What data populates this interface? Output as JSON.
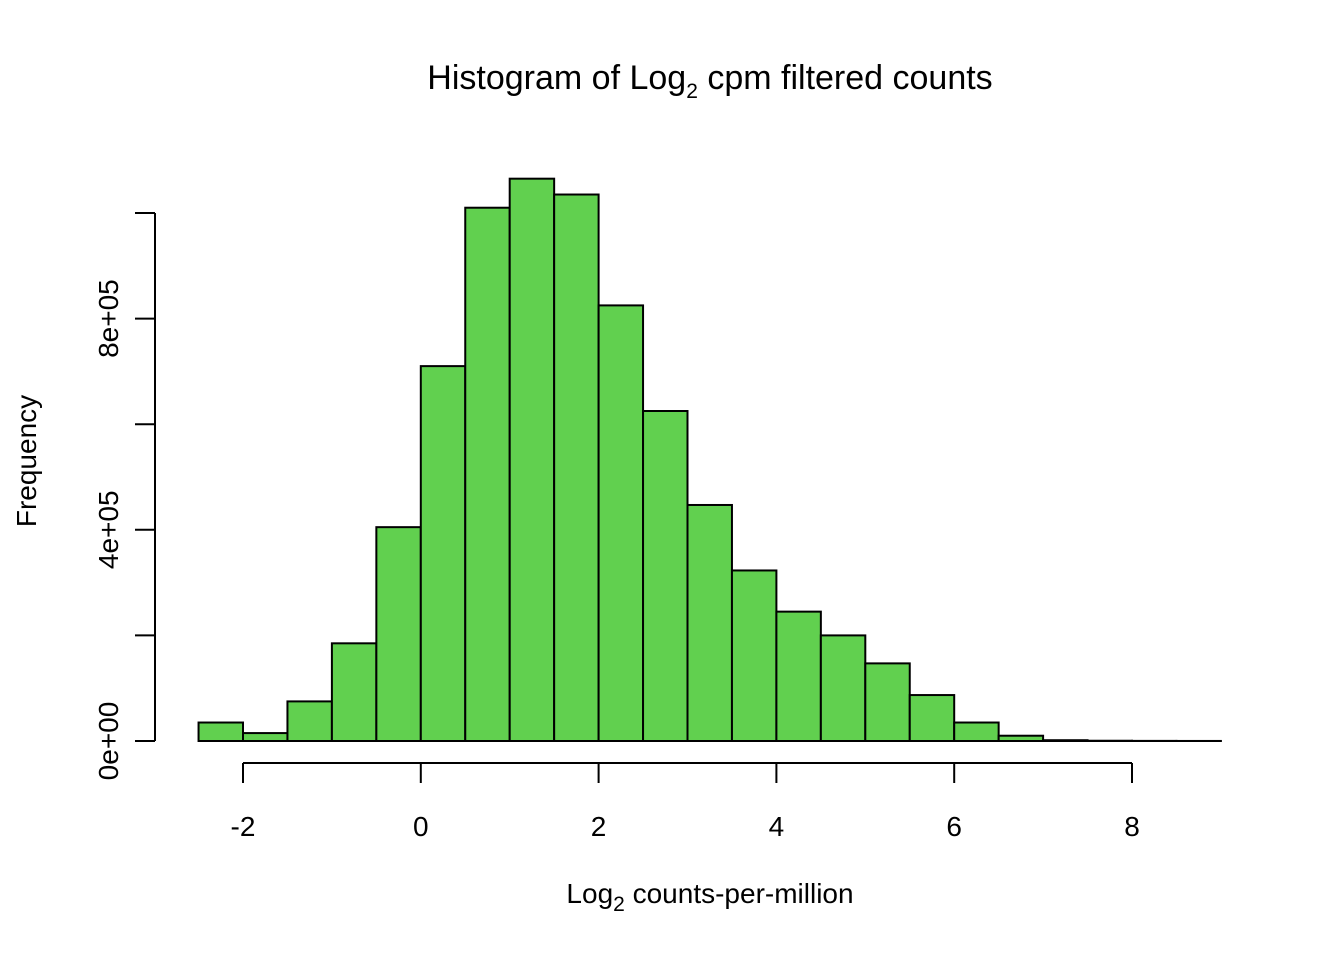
{
  "chart_data": {
    "type": "bar",
    "title": {
      "prefix": "Histogram of Log",
      "subscript": "2",
      "suffix": " cpm filtered counts"
    },
    "xlabel": {
      "prefix": "Log",
      "subscript": "2",
      "suffix": " counts-per-million"
    },
    "ylabel": "Frequency",
    "bar_color": "#61D04F",
    "grid": false,
    "x_range": [
      -2.5,
      9
    ],
    "xlim": [
      -2,
      8
    ],
    "ylim": [
      0,
      1000000
    ],
    "x_ticks": [
      -2,
      0,
      2,
      4,
      6,
      8
    ],
    "x_tick_labels": [
      "-2",
      "0",
      "2",
      "4",
      "6",
      "8"
    ],
    "y_ticks": [
      0,
      200000,
      400000,
      600000,
      800000,
      1000000
    ],
    "y_tick_labels": [
      "0e+00",
      "",
      "4e+05",
      "",
      "8e+05",
      ""
    ],
    "bins": [
      {
        "x0": -2.5,
        "x1": -2.0,
        "count": 35000
      },
      {
        "x0": -2.0,
        "x1": -1.5,
        "count": 15000
      },
      {
        "x0": -1.5,
        "x1": -1.0,
        "count": 75000
      },
      {
        "x0": -1.0,
        "x1": -0.5,
        "count": 185000
      },
      {
        "x0": -0.5,
        "x1": 0.0,
        "count": 405000
      },
      {
        "x0": 0.0,
        "x1": 0.5,
        "count": 710000
      },
      {
        "x0": 0.5,
        "x1": 1.0,
        "count": 1010000
      },
      {
        "x0": 1.0,
        "x1": 1.5,
        "count": 1065000
      },
      {
        "x0": 1.5,
        "x1": 2.0,
        "count": 1035000
      },
      {
        "x0": 2.0,
        "x1": 2.5,
        "count": 825000
      },
      {
        "x0": 2.5,
        "x1": 3.0,
        "count": 625000
      },
      {
        "x0": 3.0,
        "x1": 3.5,
        "count": 447000
      },
      {
        "x0": 3.5,
        "x1": 4.0,
        "count": 323000
      },
      {
        "x0": 4.0,
        "x1": 4.5,
        "count": 245000
      },
      {
        "x0": 4.5,
        "x1": 5.0,
        "count": 200000
      },
      {
        "x0": 5.0,
        "x1": 5.5,
        "count": 147000
      },
      {
        "x0": 5.5,
        "x1": 6.0,
        "count": 87000
      },
      {
        "x0": 6.0,
        "x1": 6.5,
        "count": 35000
      },
      {
        "x0": 6.5,
        "x1": 7.0,
        "count": 10000
      },
      {
        "x0": 7.0,
        "x1": 7.5,
        "count": 1500
      },
      {
        "x0": 7.5,
        "x1": 8.0,
        "count": 500
      },
      {
        "x0": 8.0,
        "x1": 8.5,
        "count": 200
      },
      {
        "x0": 8.5,
        "x1": 9.0,
        "count": 100
      }
    ]
  }
}
